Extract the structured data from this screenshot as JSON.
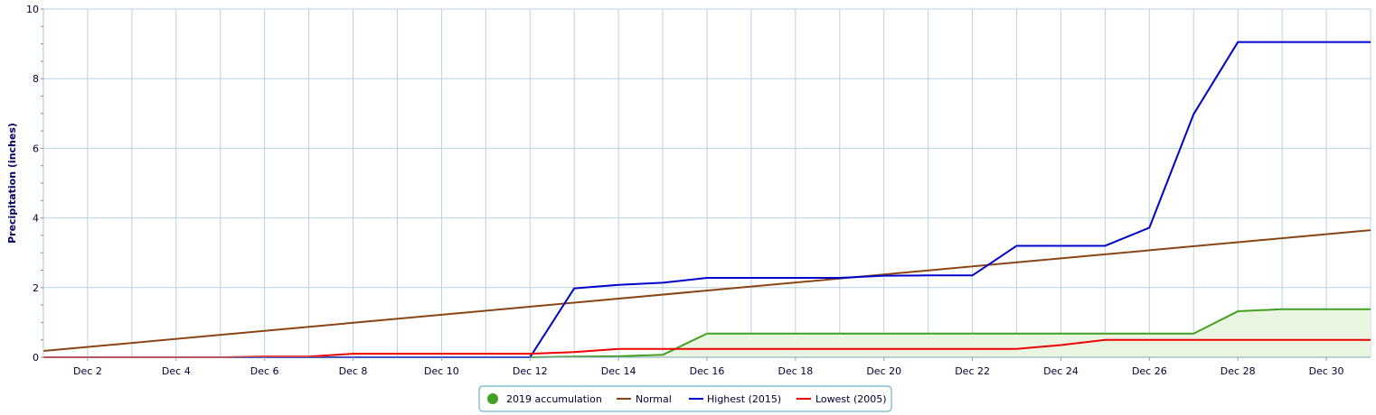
{
  "chart_data": {
    "type": "line",
    "title": "",
    "xlabel": "",
    "ylabel": "Precipitation (inches)",
    "xlim": [
      1,
      31
    ],
    "ylim": [
      0,
      10
    ],
    "y_ticks": [
      0,
      2,
      4,
      6,
      8,
      10
    ],
    "x_tick_labels": [
      "Dec 2",
      "Dec 4",
      "Dec 6",
      "Dec 8",
      "Dec 10",
      "Dec 12",
      "Dec 14",
      "Dec 16",
      "Dec 18",
      "Dec 20",
      "Dec 22",
      "Dec 24",
      "Dec 26",
      "Dec 28",
      "Dec 30"
    ],
    "x_tick_values": [
      2,
      4,
      6,
      8,
      10,
      12,
      14,
      16,
      18,
      20,
      22,
      24,
      26,
      28,
      30
    ],
    "grid": true,
    "legend_position": "bottom-center",
    "series": [
      {
        "name": "2019 accumulation",
        "color": "#44a022",
        "fill": "#e9f5e0",
        "x": [
          1,
          2,
          3,
          4,
          5,
          6,
          7,
          8,
          9,
          10,
          11,
          12,
          13,
          14,
          15,
          16,
          17,
          18,
          19,
          20,
          21,
          22,
          23,
          24,
          25,
          26,
          27,
          28,
          29,
          30,
          31
        ],
        "y": [
          0,
          0,
          0,
          0,
          0,
          0,
          0,
          0,
          0,
          0,
          0,
          0,
          0.02,
          0.03,
          0.07,
          0.68,
          0.68,
          0.68,
          0.68,
          0.68,
          0.68,
          0.68,
          0.68,
          0.68,
          0.68,
          0.68,
          0.68,
          1.32,
          1.38,
          1.38,
          1.38
        ]
      },
      {
        "name": "Normal",
        "color": "#8b4513",
        "x": [
          1,
          31
        ],
        "y": [
          0.18,
          3.65
        ]
      },
      {
        "name": "Highest (2015)",
        "color": "#0000cc",
        "x": [
          1,
          2,
          3,
          4,
          5,
          6,
          7,
          8,
          9,
          10,
          11,
          12,
          13,
          14,
          15,
          16,
          17,
          18,
          19,
          20,
          21,
          22,
          23,
          24,
          25,
          26,
          27,
          28,
          29,
          30,
          31
        ],
        "y": [
          0,
          0,
          0,
          0,
          0,
          0,
          0,
          0,
          0,
          0,
          0,
          0,
          1.98,
          2.08,
          2.14,
          2.28,
          2.28,
          2.28,
          2.28,
          2.34,
          2.35,
          2.35,
          3.2,
          3.2,
          3.2,
          3.72,
          6.98,
          9.05,
          9.05,
          9.05,
          9.05
        ]
      },
      {
        "name": "Lowest (2005)",
        "color": "#ee0000",
        "x": [
          1,
          2,
          3,
          4,
          5,
          6,
          7,
          8,
          9,
          10,
          11,
          12,
          13,
          14,
          15,
          16,
          17,
          18,
          19,
          20,
          21,
          22,
          23,
          24,
          25,
          26,
          27,
          28,
          29,
          30,
          31
        ],
        "y": [
          0,
          0,
          0,
          0,
          0,
          0.02,
          0.02,
          0.1,
          0.1,
          0.1,
          0.1,
          0.1,
          0.15,
          0.24,
          0.24,
          0.24,
          0.24,
          0.24,
          0.24,
          0.24,
          0.24,
          0.24,
          0.24,
          0.35,
          0.5,
          0.5,
          0.5,
          0.5,
          0.5,
          0.5,
          0.5
        ]
      }
    ]
  },
  "legend": {
    "items": [
      {
        "label": "2019 accumulation",
        "symbol": "dot",
        "color": "#44a022"
      },
      {
        "label": "Normal",
        "symbol": "line",
        "color": "#8b4513"
      },
      {
        "label": "Highest (2015)",
        "symbol": "line",
        "color": "#0000cc"
      },
      {
        "label": "Lowest (2005)",
        "symbol": "line",
        "color": "#ee0000"
      }
    ]
  },
  "colors": {
    "grid": "#b6d3e3",
    "axis_line": "#a0c0d0",
    "text": "#000033"
  }
}
